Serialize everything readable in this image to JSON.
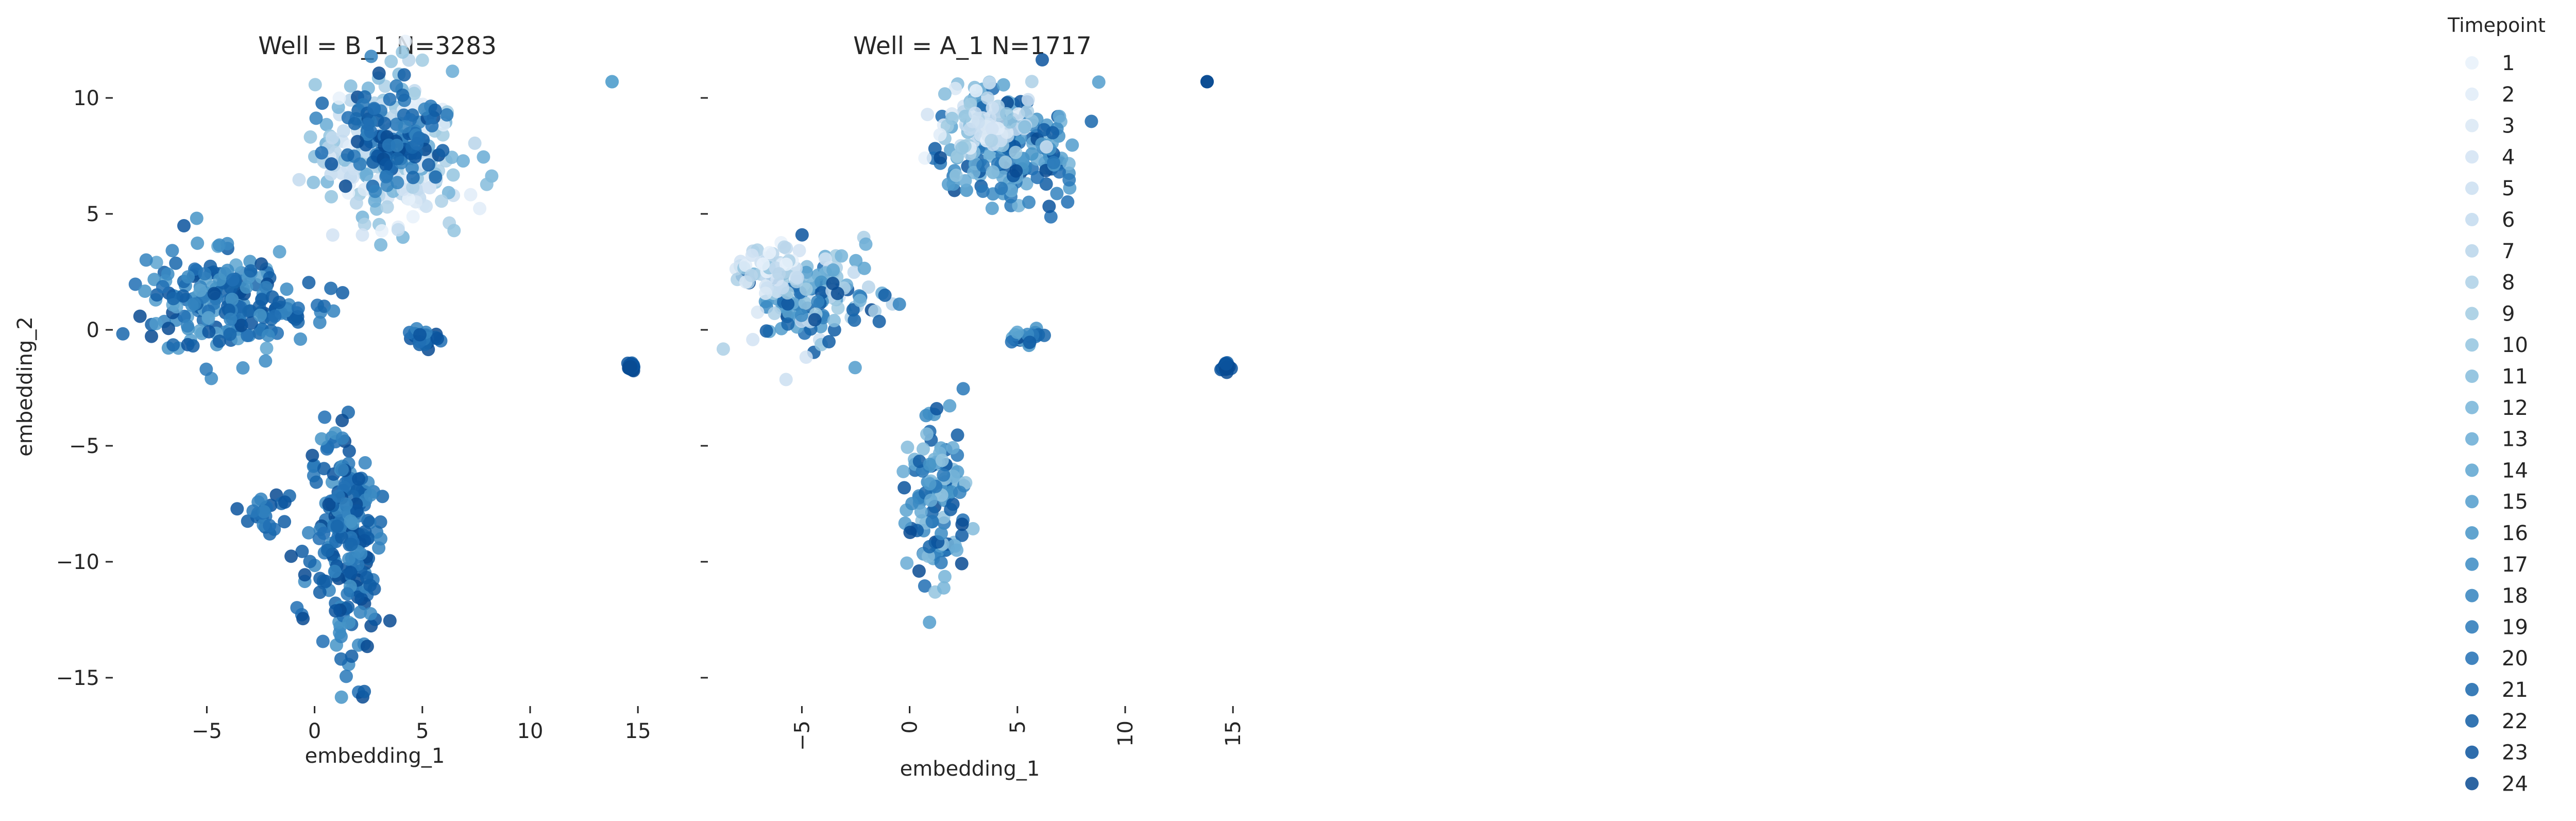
{
  "chart_data": [
    {
      "type": "scatter",
      "title": "Well = B_1 N=3283",
      "xlabel": "embedding_1",
      "ylabel": "embedding_2",
      "xlim": [
        -8.5,
        16
      ],
      "ylim": [
        -16,
        12
      ],
      "xticks": [
        -5,
        0,
        5,
        10,
        15
      ],
      "xtick_labels": [
        "−5",
        "0",
        "5",
        "10",
        "15"
      ],
      "yticks": [
        10,
        5,
        0,
        -5,
        -10,
        -15
      ],
      "ytick_labels": [
        "10",
        "5",
        "0",
        "−5",
        "−10",
        "−15"
      ],
      "grid": false,
      "clusters": [
        {
          "label": "upper cluster",
          "center": [
            3.5,
            7.8
          ],
          "spread": [
            1.7,
            1.6
          ],
          "timepoint_range": [
            1,
            13
          ]
        },
        {
          "label": "upper cluster late",
          "center": [
            3.8,
            8.3
          ],
          "spread": [
            1.2,
            1.0
          ],
          "timepoint_range": [
            18,
            24
          ]
        },
        {
          "label": "left cluster",
          "center": [
            -4.8,
            1.2
          ],
          "spread": [
            1.6,
            1.2
          ],
          "timepoint_range": [
            14,
            24
          ]
        },
        {
          "label": "left cluster tail",
          "center": [
            -1.5,
            0.8
          ],
          "spread": [
            0.9,
            0.5
          ],
          "timepoint_range": [
            16,
            24
          ]
        },
        {
          "label": "small right cluster",
          "center": [
            5.0,
            -0.3
          ],
          "spread": [
            0.4,
            0.2
          ],
          "timepoint_range": [
            18,
            24
          ]
        },
        {
          "label": "lower cluster",
          "center": [
            1.4,
            -9.0
          ],
          "spread": [
            0.9,
            2.6
          ],
          "timepoint_range": [
            16,
            24
          ]
        },
        {
          "label": "lower-left arm",
          "center": [
            -2.2,
            -7.8
          ],
          "spread": [
            0.5,
            0.5
          ],
          "timepoint_range": [
            18,
            24
          ]
        },
        {
          "label": "outlier pair",
          "center": [
            14.7,
            -1.6
          ],
          "spread": [
            0.1,
            0.1
          ],
          "timepoint_range": [
            22,
            24
          ]
        },
        {
          "label": "outlier top",
          "center": [
            13.8,
            10.7
          ],
          "spread": [
            0.0,
            0.0
          ],
          "timepoint_range": [
            14,
            14
          ]
        }
      ]
    },
    {
      "type": "scatter",
      "title": "Well = A_1 N=1717",
      "xlabel": "embedding_1",
      "ylabel": "",
      "xlim": [
        -8.5,
        16
      ],
      "ylim": [
        -16,
        12
      ],
      "xticks": [
        -5,
        0,
        5,
        10,
        15
      ],
      "xtick_labels": [
        "−5",
        "0",
        "5",
        "10",
        "15"
      ],
      "grid": false,
      "clusters": [
        {
          "label": "upper cluster",
          "center": [
            4.8,
            7.8
          ],
          "spread": [
            1.6,
            1.2
          ],
          "timepoint_range": [
            12,
            24
          ]
        },
        {
          "label": "upper cluster early",
          "center": [
            3.5,
            8.8
          ],
          "spread": [
            1.2,
            0.8
          ],
          "timepoint_range": [
            1,
            11
          ]
        },
        {
          "label": "left cluster",
          "center": [
            -4.5,
            1.2
          ],
          "spread": [
            1.4,
            1.1
          ],
          "timepoint_range": [
            4,
            24
          ]
        },
        {
          "label": "left cluster early",
          "center": [
            -6.5,
            2.5
          ],
          "spread": [
            0.9,
            0.6
          ],
          "timepoint_range": [
            1,
            10
          ]
        },
        {
          "label": "small right cluster",
          "center": [
            5.3,
            -0.3
          ],
          "spread": [
            0.4,
            0.15
          ],
          "timepoint_range": [
            14,
            24
          ]
        },
        {
          "label": "lower cluster",
          "center": [
            1.2,
            -7.3
          ],
          "spread": [
            0.7,
            1.9
          ],
          "timepoint_range": [
            10,
            24
          ]
        },
        {
          "label": "outlier pair",
          "center": [
            14.7,
            -1.6
          ],
          "spread": [
            0.1,
            0.1
          ],
          "timepoint_range": [
            22,
            24
          ]
        },
        {
          "label": "outlier top",
          "center": [
            13.8,
            10.7
          ],
          "spread": [
            0.0,
            0.0
          ],
          "timepoint_range": [
            24,
            24
          ]
        }
      ]
    }
  ],
  "legend": {
    "title": "Timepoint",
    "placement": "right",
    "items": [
      "1",
      "2",
      "3",
      "4",
      "5",
      "6",
      "7",
      "8",
      "9",
      "10",
      "11",
      "12",
      "13",
      "14",
      "15",
      "16",
      "17",
      "18",
      "19",
      "20",
      "21",
      "22",
      "23",
      "24"
    ],
    "colormap": "Blues",
    "color_light": "#eef4fb",
    "color_dark": "#0a3d82"
  }
}
